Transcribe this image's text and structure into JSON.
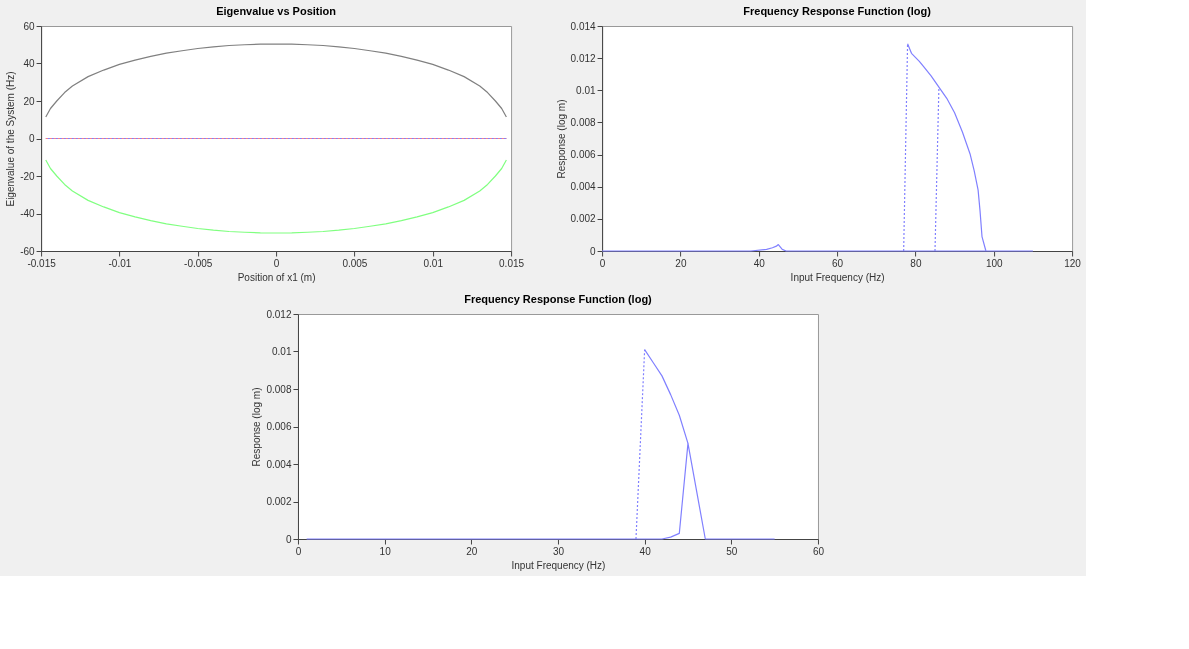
{
  "chart_data": [
    {
      "type": "line",
      "title": "Eigenvalue vs Position",
      "xlabel": "Position of x1 (m)",
      "ylabel": "Eigenvalue of the System (Hz)",
      "xlim": [
        -0.015,
        0.015
      ],
      "xticks": [
        -0.015,
        -0.01,
        -0.005,
        0,
        0.005,
        0.01,
        0.015
      ],
      "ylim": [
        -60,
        60
      ],
      "yticks": [
        -60,
        -40,
        -20,
        0,
        20,
        40,
        60
      ],
      "grid": false,
      "legend": false,
      "marker": "none",
      "series": [
        {
          "color": "#808080",
          "line_style": "solid",
          "x": [
            -0.0147,
            -0.0144,
            -0.014,
            -0.0135,
            -0.013,
            -0.012,
            -0.011,
            -0.01,
            -0.009,
            -0.008,
            -0.007,
            -0.006,
            -0.005,
            -0.004,
            -0.003,
            -0.002,
            -0.001,
            0,
            0.001,
            0.002,
            0.003,
            0.004,
            0.005,
            0.006,
            0.007,
            0.008,
            0.009,
            0.01,
            0.011,
            0.012,
            0.013,
            0.0135,
            0.014,
            0.0144,
            0.0147
          ],
          "values": [
            11.5,
            16,
            20,
            24.5,
            28,
            33,
            36.5,
            39.5,
            41.8,
            43.8,
            45.5,
            46.8,
            48,
            48.9,
            49.6,
            50,
            50.3,
            50.4,
            50.3,
            50,
            49.6,
            48.9,
            48,
            46.8,
            45.5,
            43.8,
            41.8,
            39.5,
            36.5,
            33,
            28,
            24.5,
            20,
            16,
            11.5
          ]
        },
        {
          "color": "#80ff80",
          "line_style": "solid",
          "x": [
            -0.0147,
            -0.0144,
            -0.014,
            -0.0135,
            -0.013,
            -0.012,
            -0.011,
            -0.01,
            -0.009,
            -0.008,
            -0.007,
            -0.006,
            -0.005,
            -0.004,
            -0.003,
            -0.002,
            -0.001,
            0,
            0.001,
            0.002,
            0.003,
            0.004,
            0.005,
            0.006,
            0.007,
            0.008,
            0.009,
            0.01,
            0.011,
            0.012,
            0.013,
            0.0135,
            0.014,
            0.0144,
            0.0147
          ],
          "values": [
            -11.5,
            -16,
            -20,
            -24.5,
            -28,
            -33,
            -36.5,
            -39.5,
            -41.8,
            -43.8,
            -45.5,
            -46.8,
            -48,
            -48.9,
            -49.6,
            -50,
            -50.3,
            -50.4,
            -50.3,
            -50,
            -49.6,
            -48.9,
            -48,
            -46.8,
            -45.5,
            -43.8,
            -41.8,
            -39.5,
            -36.5,
            -33,
            -28,
            -24.5,
            -20,
            -16,
            -11.5
          ]
        },
        {
          "color": "#8080ff",
          "line_style": "solid",
          "x": [
            -0.0147,
            0.0147
          ],
          "values": [
            0,
            0
          ]
        },
        {
          "color": "#ff8080",
          "line_style": "dashed",
          "x": [
            -0.0147,
            0.0147
          ],
          "values": [
            0,
            0
          ]
        }
      ]
    },
    {
      "type": "line",
      "title": "Frequency Response Function (log)",
      "xlabel": "Input Frequency (Hz)",
      "ylabel": "Response (log m)",
      "xlim": [
        0,
        120
      ],
      "xticks": [
        0,
        20,
        40,
        60,
        80,
        100,
        120
      ],
      "ylim": [
        0,
        0.014
      ],
      "yticks": [
        0,
        0.002,
        0.004,
        0.006,
        0.008,
        0.01,
        0.012,
        0.014
      ],
      "grid": false,
      "legend": false,
      "marker": "none",
      "series": [
        {
          "color": "#8080ff",
          "line_style": "solid",
          "x": [
            0,
            15,
            20,
            23,
            26,
            30,
            38,
            42,
            43.5,
            44.5,
            45,
            46,
            47,
            50,
            60,
            77,
            85,
            98,
            110
          ],
          "values": [
            0,
            0,
            0,
            0,
            0,
            0,
            0,
            0.0001,
            0.0002,
            0.0003,
            0.0004,
            0.0001,
            0,
            0,
            0,
            0,
            0,
            0,
            0
          ]
        },
        {
          "color": "#8080ff",
          "line_style": "solid",
          "x": [
            78,
            79,
            81,
            82,
            84,
            86,
            88,
            90,
            92,
            93,
            94,
            95,
            96,
            96.5,
            97,
            98
          ],
          "values": [
            0.0129,
            0.0123,
            0.0118,
            0.0115,
            0.0109,
            0.0102,
            0.0095,
            0.0086,
            0.0074,
            0.0067,
            0.006,
            0.005,
            0.0038,
            0.0025,
            0.0009,
            0
          ]
        },
        {
          "color": "#8080ff",
          "line_style": "dashed",
          "x": [
            77,
            78
          ],
          "values": [
            0,
            0.0129
          ]
        },
        {
          "color": "#8080ff",
          "line_style": "dashed",
          "x": [
            85,
            86
          ],
          "values": [
            0,
            0.0102
          ]
        }
      ]
    },
    {
      "type": "line",
      "title": "Frequency Response Function (log)",
      "xlabel": "Input Frequency (Hz)",
      "ylabel": "Response (log m)",
      "xlim": [
        0,
        60
      ],
      "xticks": [
        0,
        10,
        20,
        30,
        40,
        50,
        60
      ],
      "ylim": [
        0,
        0.012
      ],
      "yticks": [
        0,
        0.002,
        0.004,
        0.006,
        0.008,
        0.01,
        0.012
      ],
      "grid": false,
      "legend": false,
      "marker": "none",
      "series": [
        {
          "color": "#8080ff",
          "line_style": "solid",
          "x": [
            1,
            10,
            15,
            18,
            20,
            23,
            26,
            30,
            38,
            42,
            43,
            44,
            45,
            47,
            50,
            55
          ],
          "values": [
            0,
            0,
            0,
            0,
            0,
            0,
            0,
            0,
            0,
            0,
            0.0001,
            0.0003,
            0.0051,
            0,
            0,
            0
          ]
        },
        {
          "color": "#8080ff",
          "line_style": "solid",
          "x": [
            40,
            41,
            42,
            43,
            44,
            45
          ],
          "values": [
            0.0101,
            0.0094,
            0.0087,
            0.0077,
            0.0066,
            0.0051
          ]
        },
        {
          "color": "#8080ff",
          "line_style": "dashed",
          "x": [
            39,
            40
          ],
          "values": [
            0,
            0.0101
          ]
        }
      ]
    }
  ]
}
